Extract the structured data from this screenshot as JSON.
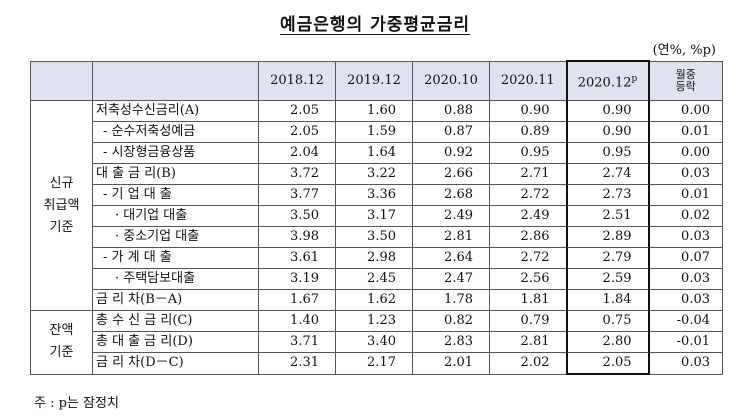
{
  "title": "예금은행의 가중평균금리",
  "unit": "(연%, %p)",
  "header": {
    "cols": [
      "2018.12",
      "2019.12",
      "2020.10",
      "2020.11",
      "2020.12"
    ],
    "prelim_mark": "p",
    "mom_line1": "월중",
    "mom_line2": "등락"
  },
  "groups": [
    {
      "label": "신규\n취급액\n기준"
    },
    {
      "label": "잔액\n기준"
    }
  ],
  "rows": [
    {
      "label": "저축성수신금리(A)",
      "values": [
        "2.05",
        "1.60",
        "0.88",
        "0.90",
        "0.90",
        "0.00"
      ]
    },
    {
      "label": "- 순수저축성예금",
      "values": [
        "2.05",
        "1.59",
        "0.87",
        "0.89",
        "0.90",
        "0.01"
      ]
    },
    {
      "label": "- 시장형금융상품",
      "values": [
        "2.04",
        "1.64",
        "0.92",
        "0.95",
        "0.95",
        "0.00"
      ]
    },
    {
      "label": "대 출 금 리(B)",
      "values": [
        "3.72",
        "3.22",
        "2.66",
        "2.71",
        "2.74",
        "0.03"
      ]
    },
    {
      "label": "- 기 업 대 출",
      "values": [
        "3.77",
        "3.36",
        "2.68",
        "2.72",
        "2.73",
        "0.01"
      ]
    },
    {
      "label": "· 대기업 대출",
      "values": [
        "3.50",
        "3.17",
        "2.49",
        "2.49",
        "2.51",
        "0.02"
      ]
    },
    {
      "label": "· 중소기업 대출",
      "values": [
        "3.98",
        "3.50",
        "2.81",
        "2.86",
        "2.89",
        "0.03"
      ]
    },
    {
      "label": "- 가 계 대 출",
      "values": [
        "3.61",
        "2.98",
        "2.64",
        "2.72",
        "2.79",
        "0.07"
      ]
    },
    {
      "label": "· 주택담보대출",
      "values": [
        "3.19",
        "2.45",
        "2.47",
        "2.56",
        "2.59",
        "0.03"
      ]
    },
    {
      "label": "금 리 차(B－A)",
      "values": [
        "1.67",
        "1.62",
        "1.78",
        "1.81",
        "1.84",
        "0.03"
      ]
    },
    {
      "label": "총 수 신 금 리(C)",
      "values": [
        "1.40",
        "1.23",
        "0.82",
        "0.79",
        "0.75",
        "-0.04"
      ]
    },
    {
      "label": "총 대 출 금 리(D)",
      "values": [
        "3.71",
        "3.40",
        "2.83",
        "2.81",
        "2.80",
        "-0.01"
      ]
    },
    {
      "label": "금 리 차(D－C)",
      "values": [
        "2.31",
        "2.17",
        "2.01",
        "2.02",
        "2.05",
        "0.03"
      ]
    }
  ],
  "footnote": "주 : p는 잠정치"
}
